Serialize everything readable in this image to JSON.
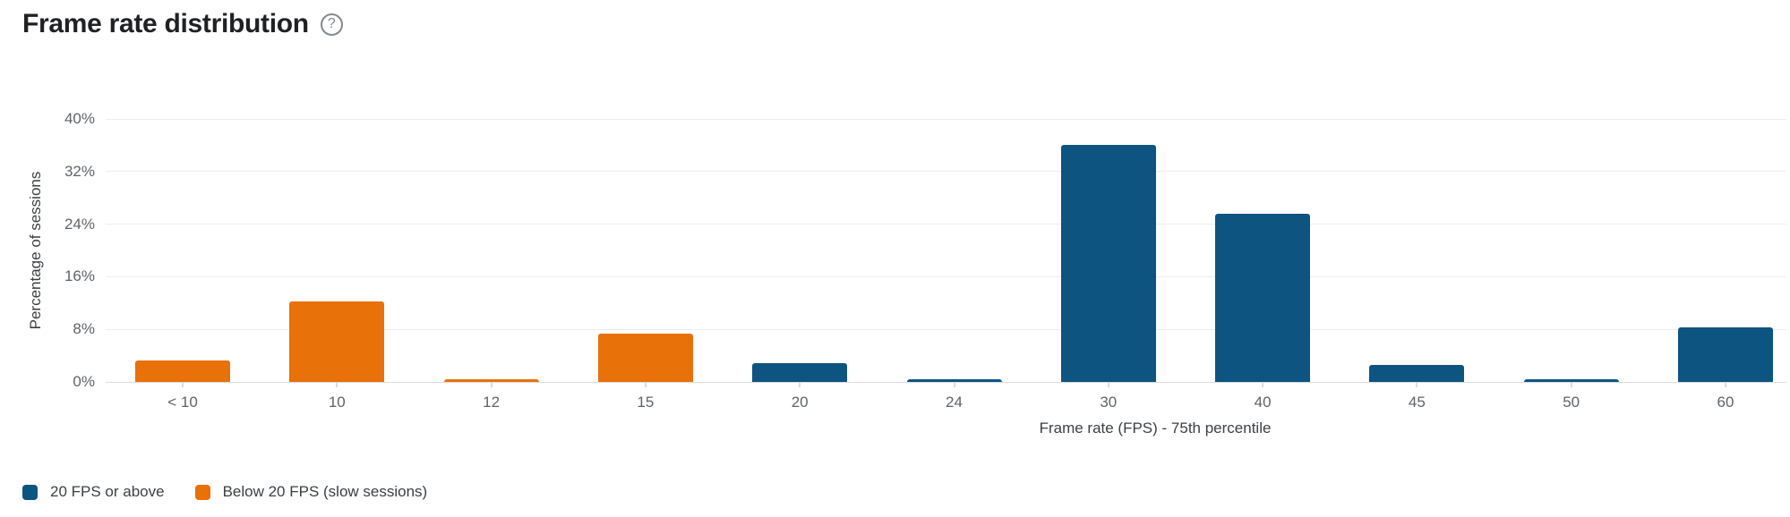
{
  "header": {
    "title": "Frame rate distribution",
    "help_glyph": "?"
  },
  "chart_data": {
    "type": "bar",
    "title": "Frame rate distribution",
    "categories": [
      "< 10",
      "10",
      "12",
      "15",
      "20",
      "24",
      "30",
      "40",
      "45",
      "50",
      "60"
    ],
    "values": [
      3.3,
      12.2,
      0.4,
      7.3,
      2.9,
      0.4,
      36.0,
      25.6,
      2.6,
      0.4,
      8.3
    ],
    "series_by_category": [
      "below",
      "below",
      "below",
      "below",
      "above",
      "above",
      "above",
      "above",
      "above",
      "above",
      "above"
    ],
    "xlabel": "Frame rate (FPS) - 75th percentile",
    "ylabel": "Percentage of sessions",
    "ylim": [
      0,
      40
    ],
    "ytick_values": [
      0,
      8,
      16,
      24,
      32,
      40
    ],
    "ytick_labels": [
      "0%",
      "8%",
      "16%",
      "24%",
      "32%",
      "40%"
    ],
    "grid": true,
    "legend_position": "bottom-left",
    "colors": {
      "above": "#0e5481",
      "below": "#e8710a"
    }
  },
  "legend": {
    "items": [
      {
        "label": "20 FPS or above",
        "series": "above",
        "color": "#0e5481"
      },
      {
        "label": "Below 20 FPS (slow sessions)",
        "series": "below",
        "color": "#e8710a"
      }
    ]
  }
}
